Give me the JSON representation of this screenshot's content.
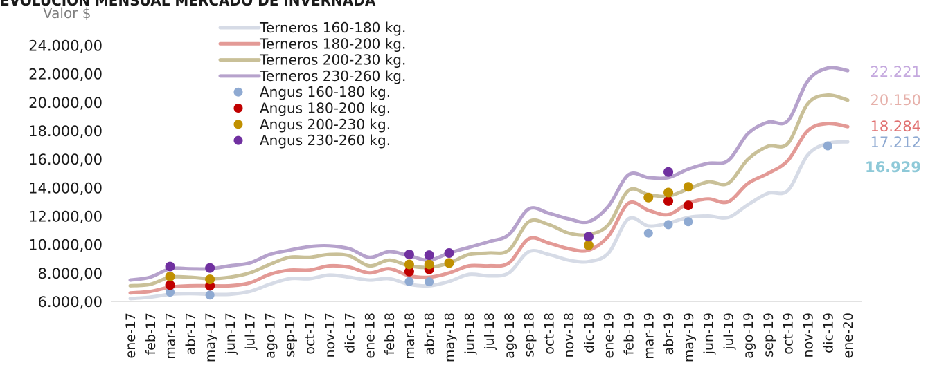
{
  "chart_data": {
    "type": "line",
    "title": "EVOLUCIÓN MENSUAL MERCADO DE INVERNADA",
    "ylabel": "Valor $",
    "xlabel": "",
    "ylim": [
      6000,
      24000
    ],
    "y_ticks": [
      "6.000,00",
      "8.000,00",
      "10.000,00",
      "12.000,00",
      "14.000,00",
      "16.000,00",
      "18.000,00",
      "20.000,00",
      "22.000,00",
      "24.000,00"
    ],
    "y_tick_values": [
      6000,
      8000,
      10000,
      12000,
      14000,
      16000,
      18000,
      20000,
      22000,
      24000
    ],
    "categories": [
      "ene-17",
      "feb-17",
      "mar-17",
      "abr-17",
      "may-17",
      "jun-17",
      "jul-17",
      "ago-17",
      "sep-17",
      "oct-17",
      "nov-17",
      "dic-17",
      "ene-18",
      "feb-18",
      "mar-18",
      "abr-18",
      "may-18",
      "jun-18",
      "jul-18",
      "ago-18",
      "sep-18",
      "oct-18",
      "nov-18",
      "dic-18",
      "ene-19",
      "feb-19",
      "mar-19",
      "abr-19",
      "may-19",
      "jun-19",
      "jul-19",
      "ago-19",
      "sep-19",
      "oct-19",
      "nov-19",
      "dic-19",
      "ene-20"
    ],
    "series": [
      {
        "name": "Terneros 160-180 kg.",
        "kind": "line",
        "color": "#d6dbe6",
        "values": [
          6200,
          6300,
          6500,
          6550,
          6500,
          6500,
          6700,
          7200,
          7600,
          7600,
          7850,
          7700,
          7500,
          7600,
          7200,
          7100,
          7400,
          7900,
          7800,
          8000,
          9500,
          9300,
          8900,
          8800,
          9400,
          11800,
          11300,
          11500,
          11900,
          12000,
          11900,
          12800,
          13600,
          13800,
          16300,
          17100,
          17212
        ]
      },
      {
        "name": "Terneros 180-200 kg.",
        "kind": "line",
        "color": "#e39a96",
        "values": [
          6600,
          6700,
          7000,
          7100,
          7100,
          7100,
          7300,
          7900,
          8200,
          8200,
          8500,
          8400,
          8000,
          8300,
          7800,
          7700,
          8000,
          8500,
          8500,
          8700,
          10400,
          10100,
          9700,
          9600,
          10600,
          12900,
          12400,
          12100,
          12900,
          13200,
          13000,
          14300,
          15000,
          15900,
          18000,
          18500,
          18284
        ]
      },
      {
        "name": "Terneros 200-230 kg.",
        "kind": "line",
        "color": "#c9c098",
        "values": [
          7100,
          7200,
          7700,
          7700,
          7600,
          7700,
          8000,
          8600,
          9100,
          9100,
          9300,
          9200,
          8500,
          8900,
          8500,
          8400,
          8700,
          9300,
          9400,
          9600,
          11600,
          11400,
          10800,
          10700,
          11400,
          13800,
          13500,
          13400,
          13900,
          14400,
          14300,
          16000,
          16900,
          17100,
          19900,
          20500,
          20150
        ]
      },
      {
        "name": "Terneros 230-260 kg.",
        "kind": "line",
        "color": "#b6a2cc",
        "values": [
          7500,
          7700,
          8300,
          8300,
          8300,
          8500,
          8700,
          9300,
          9600,
          9850,
          9900,
          9700,
          9100,
          9500,
          9200,
          8900,
          9400,
          9800,
          10200,
          10700,
          12500,
          12200,
          11800,
          11600,
          12700,
          14900,
          14700,
          14700,
          15300,
          15700,
          15900,
          17800,
          18600,
          18700,
          21500,
          22400,
          22221
        ]
      },
      {
        "name": "Angus 160-180 kg.",
        "kind": "points",
        "color": "#8faad2",
        "points": [
          [
            "mar-17",
            6650
          ],
          [
            "may-17",
            6450
          ],
          [
            "mar-18",
            7400
          ],
          [
            "abr-18",
            7380
          ],
          [
            "mar-19",
            10800
          ],
          [
            "abr-19",
            11400
          ],
          [
            "may-19",
            11600
          ],
          [
            "dic-19",
            16929
          ]
        ]
      },
      {
        "name": "Angus 180-200 kg.",
        "kind": "points",
        "color": "#c00000",
        "points": [
          [
            "mar-17",
            7150
          ],
          [
            "may-17",
            7100
          ],
          [
            "mar-18",
            8100
          ],
          [
            "abr-18",
            8250
          ],
          [
            "abr-19",
            13050
          ],
          [
            "may-19",
            12750
          ]
        ]
      },
      {
        "name": "Angus 200-230 kg.",
        "kind": "points",
        "color": "#c09000",
        "points": [
          [
            "mar-17",
            7750
          ],
          [
            "may-17",
            7550
          ],
          [
            "mar-18",
            8600
          ],
          [
            "abr-18",
            8600
          ],
          [
            "may-18",
            8700
          ],
          [
            "dic-18",
            9950
          ],
          [
            "mar-19",
            13300
          ],
          [
            "abr-19",
            13650
          ],
          [
            "may-19",
            14050
          ]
        ]
      },
      {
        "name": "Angus 230-260 kg.",
        "kind": "points",
        "color": "#7030a0",
        "points": [
          [
            "mar-17",
            8450
          ],
          [
            "may-17",
            8350
          ],
          [
            "mar-18",
            9300
          ],
          [
            "abr-18",
            9250
          ],
          [
            "may-18",
            9400
          ],
          [
            "dic-18",
            10550
          ],
          [
            "abr-19",
            15100
          ]
        ]
      }
    ],
    "end_labels": [
      {
        "text": "22.221",
        "value": 22221,
        "color": "#c4a8de",
        "bold": false
      },
      {
        "text": "20.150",
        "value": 20150,
        "color": "#e6b0aa",
        "bold": false
      },
      {
        "text": "18.284",
        "value": 18284,
        "color": "#e07070",
        "bold": false
      },
      {
        "text": "17.212",
        "value": 17212,
        "color": "#8faad2",
        "bold": false
      },
      {
        "text": "16.929",
        "value": 16929,
        "color": "#8ec9d8",
        "bold": true
      }
    ],
    "legend_position": "top-left",
    "grid": false
  }
}
